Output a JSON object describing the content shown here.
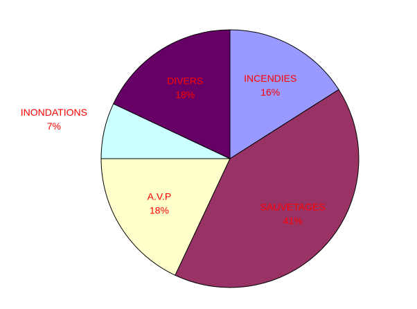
{
  "chart_data": {
    "type": "pie",
    "categories": [
      "INCENDIES",
      "SAUVETAGES",
      "A.V.P",
      "INONDATIONS",
      "DIVERS"
    ],
    "values": [
      16,
      41,
      18,
      7,
      18
    ],
    "value_labels": [
      "16%",
      "41%",
      "18%",
      "7%",
      "18%"
    ],
    "colors": [
      "#9999ff",
      "#993366",
      "#ffffcc",
      "#ccffff",
      "#660066"
    ]
  }
}
